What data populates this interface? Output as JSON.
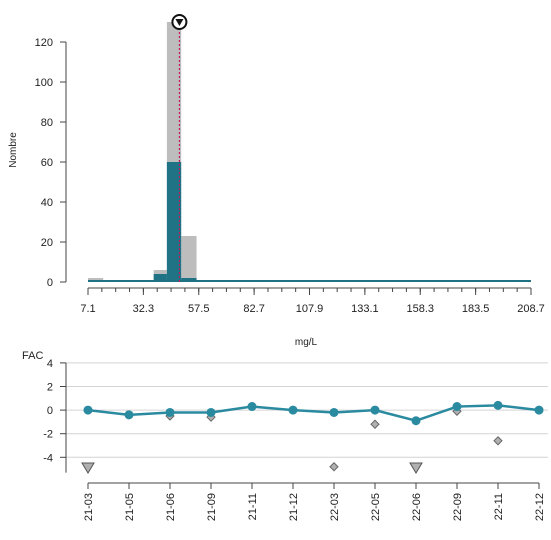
{
  "colors": {
    "teal": "#1f7385",
    "gray": "#bdbdbd",
    "line": "#2a8aa0",
    "marker_gray": "#b0b0b0",
    "median_line": "#c2185b"
  },
  "chart_data": [
    {
      "type": "bar",
      "xlabel": "mg/L",
      "ylabel": "Nombre",
      "x_ticks": [
        "7.1",
        "32.3",
        "57.5",
        "82.7",
        "107.9",
        "133.1",
        "158.3",
        "183.5",
        "208.7"
      ],
      "x_tick_values": [
        7.1,
        32.3,
        57.5,
        82.7,
        107.9,
        133.1,
        158.3,
        183.5,
        208.7
      ],
      "xlim": [
        5,
        210
      ],
      "y_ticks": [
        "0",
        "20",
        "40",
        "60",
        "80",
        "100",
        "120"
      ],
      "ylim": [
        0,
        128
      ],
      "series": [
        {
          "color_role": "gray",
          "bins": [
            {
              "x0": 7.1,
              "x1": 14.0,
              "y": 2
            },
            {
              "x0": 14.0,
              "x1": 21.0,
              "y": 0.5
            },
            {
              "x0": 30.0,
              "x1": 37.0,
              "y": 1
            },
            {
              "x0": 37.0,
              "x1": 43.0,
              "y": 6
            },
            {
              "x0": 43.0,
              "x1": 49.5,
              "y": 130
            },
            {
              "x0": 49.5,
              "x1": 56.5,
              "y": 23
            },
            {
              "x0": 63.0,
              "x1": 70.0,
              "y": 1
            },
            {
              "x0": 70.0,
              "x1": 77.0,
              "y": 1
            },
            {
              "x0": 105.0,
              "x1": 112.0,
              "y": 1
            }
          ]
        },
        {
          "color_role": "teal",
          "bins": [
            {
              "x0": 37.0,
              "x1": 43.0,
              "y": 4
            },
            {
              "x0": 43.0,
              "x1": 49.5,
              "y": 60
            },
            {
              "x0": 49.5,
              "x1": 56.5,
              "y": 2
            }
          ]
        }
      ],
      "baseline_teal": true,
      "median_value": 48.7,
      "target_marker_value": 48.7
    },
    {
      "type": "line",
      "ylabel": "FAC",
      "y_ticks": [
        "4",
        "2",
        "0",
        "-2",
        "-4"
      ],
      "y_tick_values": [
        4,
        2,
        0,
        -2,
        -4
      ],
      "ylim": [
        -5.5,
        4.5
      ],
      "categories": [
        "21-03",
        "21-05",
        "21-06",
        "21-09",
        "21-11",
        "21-12",
        "22-03",
        "22-05",
        "22-06",
        "22-09",
        "22-11",
        "22-12"
      ],
      "values": [
        0,
        -0.4,
        -0.2,
        -0.2,
        0.3,
        0,
        -0.2,
        0,
        -0.9,
        0.3,
        0.4,
        0
      ],
      "diamonds": [
        {
          "category": "21-06",
          "value": -0.5
        },
        {
          "category": "21-09",
          "value": -0.6
        },
        {
          "category": "22-03",
          "value": -4.8
        },
        {
          "category": "22-05",
          "value": -1.2
        },
        {
          "category": "22-09",
          "value": -0.1
        },
        {
          "category": "22-11",
          "value": -2.6
        }
      ],
      "out_of_range_down": [
        "21-03",
        "22-06"
      ],
      "grid": true
    }
  ]
}
